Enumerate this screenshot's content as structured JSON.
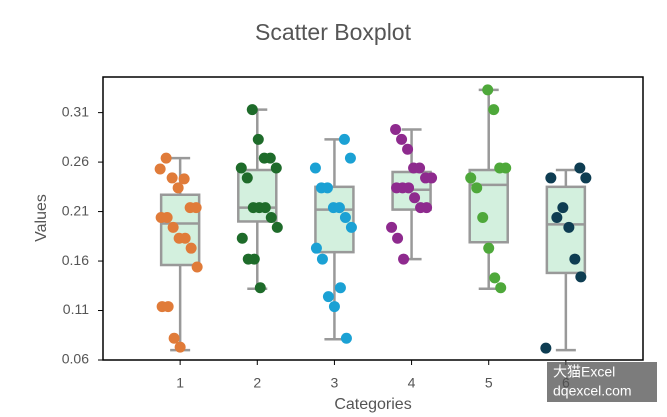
{
  "chart_data": {
    "type": "scatter-boxplot",
    "title": "Scatter Boxplot",
    "x_label": "Categories",
    "y_label": "Values",
    "categories": [
      "1",
      "2",
      "3",
      "4",
      "5",
      "6"
    ],
    "colors": [
      "#e07b39",
      "#1e6b2a",
      "#1ba1d4",
      "#8e2a8e",
      "#4ea83a",
      "#0e3d52"
    ],
    "box_color": "#d3f0de",
    "box_edge_color": "#999999",
    "boxes": [
      {
        "whisker_low": 0.07,
        "q1": 0.156,
        "median": 0.198,
        "q3": 0.227,
        "whisker_high": 0.264
      },
      {
        "whisker_low": 0.132,
        "q1": 0.2,
        "median": 0.214,
        "q3": 0.252,
        "whisker_high": 0.313
      },
      {
        "whisker_low": 0.081,
        "q1": 0.169,
        "median": 0.212,
        "q3": 0.235,
        "whisker_high": 0.283
      },
      {
        "whisker_low": 0.162,
        "q1": 0.212,
        "median": 0.232,
        "q3": 0.25,
        "whisker_high": 0.293
      },
      {
        "whisker_low": 0.132,
        "q1": 0.179,
        "median": 0.237,
        "q3": 0.252,
        "whisker_high": 0.333
      },
      {
        "whisker_low": 0.07,
        "q1": 0.148,
        "median": 0.197,
        "q3": 0.235,
        "whisker_high": 0.252
      }
    ],
    "points": [
      [
        0.253,
        0.264,
        0.244,
        0.234,
        0.243,
        0.214,
        0.214,
        0.204,
        0.204,
        0.194,
        0.183,
        0.183,
        0.173,
        0.154,
        0.114,
        0.114,
        0.082,
        0.073
      ],
      [
        0.313,
        0.283,
        0.264,
        0.264,
        0.254,
        0.254,
        0.244,
        0.214,
        0.214,
        0.214,
        0.204,
        0.194,
        0.183,
        0.162,
        0.162,
        0.133
      ],
      [
        0.283,
        0.264,
        0.254,
        0.234,
        0.234,
        0.214,
        0.214,
        0.204,
        0.194,
        0.173,
        0.162,
        0.124,
        0.114,
        0.133,
        0.082
      ],
      [
        0.293,
        0.283,
        0.273,
        0.254,
        0.254,
        0.244,
        0.244,
        0.234,
        0.234,
        0.234,
        0.224,
        0.214,
        0.214,
        0.194,
        0.183,
        0.162
      ],
      [
        0.333,
        0.313,
        0.254,
        0.254,
        0.244,
        0.234,
        0.204,
        0.173,
        0.143,
        0.133
      ],
      [
        0.254,
        0.244,
        0.244,
        0.204,
        0.214,
        0.194,
        0.162,
        0.144,
        0.072
      ]
    ],
    "ylim": [
      0.06,
      0.346
    ],
    "yticks": [
      0.06,
      0.11,
      0.16,
      0.21,
      0.26,
      0.31
    ],
    "watermark": [
      "大猫Excel",
      "dqexcel.com"
    ]
  }
}
